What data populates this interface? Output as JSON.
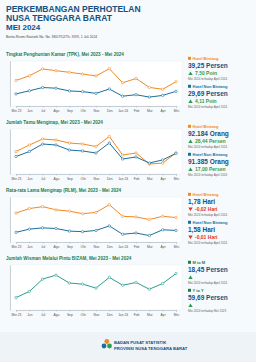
{
  "header": {
    "title": [
      "PERKEMBANGAN PERHOTELAN",
      "NUSA TENGGARA BARAT",
      "MEI 2024"
    ],
    "subtitle": "Berita Resmi Statistik No. No. 38/07/52/Th. XVIII, 1 Juli 2024"
  },
  "chart_data": [
    {
      "type": "line",
      "title": "Tingkat Penghunian Kamar (TPK), Mei 2023 - Mei 2024",
      "categories": [
        "Mei 23",
        "Jun",
        "Jul",
        "Agu",
        "Sep",
        "Okt",
        "Nov",
        "Des",
        "Jan 24",
        "Feb",
        "Mar",
        "Apr",
        "Mei"
      ],
      "series": [
        {
          "name": "Hotel Bintang",
          "color": "#f08a24",
          "values": [
            40.5,
            45.2,
            52.1,
            50.3,
            48.7,
            46.9,
            45.1,
            52.3,
            38.2,
            42.5,
            33.6,
            31.75,
            39.25
          ]
        },
        {
          "name": "Hotel Non Bintang",
          "color": "#1b6f9c",
          "values": [
            27.1,
            30.2,
            33.5,
            32.8,
            30.1,
            29.4,
            27.6,
            32.0,
            24.8,
            26.3,
            23.9,
            25.58,
            29.69
          ]
        }
      ],
      "ylim": [
        15,
        60
      ],
      "tick_labels": "x",
      "marker": "circle",
      "annotations": [
        {
          "value_text": "39,25 Persen",
          "change": "7,50 Poin",
          "direction": "up",
          "note": "Mei 2024 terhadap April 2024"
        },
        {
          "value_text": "29,69 Persen",
          "change": "4,11 Poin",
          "direction": "up",
          "note": "Mei 2024 terhadap April 2024"
        }
      ]
    },
    {
      "type": "line",
      "title": "Jumlah Tamu Menginap, Mei 2023 - Mei 2024",
      "categories": [
        "Mei 23",
        "Jun",
        "Jul",
        "Agu",
        "Sep",
        "Okt",
        "Nov",
        "Des",
        "Jan 24",
        "Feb",
        "Mar",
        "Apr",
        "Mei"
      ],
      "series": [
        {
          "name": "Hotel Bintang",
          "color": "#f08a24",
          "values": [
            95000,
            108000,
            120000,
            118000,
            112000,
            110000,
            105000,
            125000,
            88000,
            92000,
            70000,
            71772,
            92184
          ]
        },
        {
          "name": "Hotel Non Bintang",
          "color": "#1b6f9c",
          "values": [
            85000,
            95000,
            110000,
            108000,
            98000,
            96000,
            92000,
            112000,
            80000,
            84000,
            72000,
            78107,
            91385
          ]
        }
      ],
      "ylim": [
        50000,
        140000
      ],
      "tick_labels": "x",
      "marker": "circle",
      "annotations": [
        {
          "value_text": "92.184 Orang",
          "change": "28,44 Persen",
          "direction": "up",
          "note": "Mei 2024 terhadap April 2024"
        },
        {
          "value_text": "91.385 Orang",
          "change": "17,00 Persen",
          "direction": "up",
          "note": "Mei 2024 terhadap April 2024"
        }
      ]
    },
    {
      "type": "line",
      "title": "Rata-rata Lama Menginap (RLM), Mei 2023 - Mei 2024",
      "categories": [
        "Mei 23",
        "Jun",
        "Jul",
        "Agu",
        "Sep",
        "Okt",
        "Nov",
        "Des",
        "Jan 24",
        "Feb",
        "Mar",
        "Apr",
        "Mei"
      ],
      "series": [
        {
          "name": "Hotel Bintang",
          "color": "#f08a24",
          "values": [
            1.85,
            1.92,
            1.95,
            1.9,
            1.88,
            1.84,
            1.86,
            1.98,
            1.8,
            1.79,
            1.75,
            1.8,
            1.78
          ]
        },
        {
          "name": "Hotel Non Bintang",
          "color": "#1b6f9c",
          "values": [
            1.55,
            1.6,
            1.62,
            1.61,
            1.57,
            1.56,
            1.58,
            1.65,
            1.52,
            1.54,
            1.5,
            1.59,
            1.58
          ]
        }
      ],
      "ylim": [
        1.4,
        2.1
      ],
      "tick_labels": "x",
      "marker": "circle",
      "annotations": [
        {
          "value_text": "1,78 Hari",
          "change": "-0,02 Hari",
          "direction": "down",
          "note": "Mei 2024 terhadap April 2024"
        },
        {
          "value_text": "1,58 Hari",
          "change": "-0,01 Hari",
          "direction": "down",
          "note": "Mei 2024 terhadap April 2024"
        }
      ]
    },
    {
      "type": "line",
      "title": "Jumlah Wisman Melalui Pintu BIZAM, Mei 2023 - Mei 2024",
      "categories": [
        "Mei 23",
        "Jun",
        "Jul",
        "Agu",
        "Sep",
        "Okt",
        "Nov",
        "Des",
        "Jan 24",
        "Feb",
        "Mar",
        "Apr",
        "Mei"
      ],
      "values": [
        7201,
        8300,
        10500,
        11200,
        9800,
        9600,
        8900,
        10800,
        9400,
        9900,
        8700,
        9709,
        11500
      ],
      "color": "#2a9d8f",
      "ylim": [
        5000,
        13000
      ],
      "tick_labels": "x",
      "marker": "circle",
      "annotations": [
        {
          "label": "M to M",
          "value_text": "18,45 Persen",
          "direction": "up",
          "note": "Mei 2024 terhadap April 2024"
        },
        {
          "label": "Y to Y",
          "value_text": "59,69 Persen",
          "direction": "up",
          "note": "Mei 2024 terhadap Mei 2023"
        }
      ]
    }
  ],
  "footer": [
    "BADAN PUSAT STATISTIK",
    "PROVINSI NUSA TENGGARA BARAT"
  ]
}
